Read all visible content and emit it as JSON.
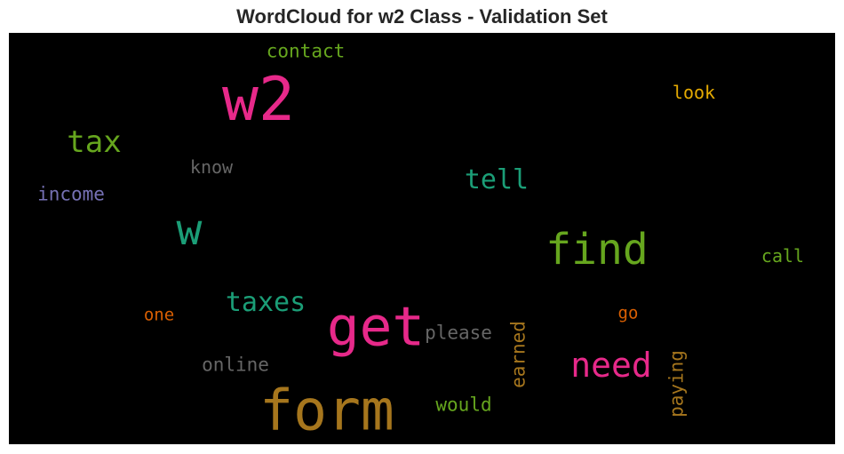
{
  "chart_data": {
    "type": "wordcloud",
    "title": "WordCloud for w2 Class - Validation Set",
    "words": [
      {
        "text": "w2",
        "weight": 1.0,
        "color": "#e7298a",
        "orientation": "horizontal"
      },
      {
        "text": "form",
        "weight": 0.93,
        "color": "#a6761d",
        "orientation": "horizontal"
      },
      {
        "text": "get",
        "weight": 0.9,
        "color": "#e7298a",
        "orientation": "horizontal"
      },
      {
        "text": "w",
        "weight": 0.7,
        "color": "#1b9e77",
        "orientation": "horizontal"
      },
      {
        "text": "find",
        "weight": 0.7,
        "color": "#66a61e",
        "orientation": "horizontal"
      },
      {
        "text": "need",
        "weight": 0.55,
        "color": "#e7298a",
        "orientation": "horizontal"
      },
      {
        "text": "tax",
        "weight": 0.5,
        "color": "#66a61e",
        "orientation": "horizontal"
      },
      {
        "text": "taxes",
        "weight": 0.44,
        "color": "#1b9e77",
        "orientation": "horizontal"
      },
      {
        "text": "tell",
        "weight": 0.44,
        "color": "#1b9e77",
        "orientation": "horizontal"
      },
      {
        "text": "earned",
        "weight": 0.3,
        "color": "#a6761d",
        "orientation": "vertical"
      },
      {
        "text": "paying",
        "weight": 0.3,
        "color": "#a6761d",
        "orientation": "vertical"
      },
      {
        "text": "please",
        "weight": 0.3,
        "color": "#666666",
        "orientation": "horizontal"
      },
      {
        "text": "online",
        "weight": 0.3,
        "color": "#666666",
        "orientation": "horizontal"
      },
      {
        "text": "contact",
        "weight": 0.3,
        "color": "#66a61e",
        "orientation": "horizontal"
      },
      {
        "text": "income",
        "weight": 0.3,
        "color": "#7570b3",
        "orientation": "horizontal"
      },
      {
        "text": "would",
        "weight": 0.3,
        "color": "#66a61e",
        "orientation": "horizontal"
      },
      {
        "text": "look",
        "weight": 0.28,
        "color": "#e6ab02",
        "orientation": "horizontal"
      },
      {
        "text": "call",
        "weight": 0.28,
        "color": "#66a61e",
        "orientation": "horizontal"
      },
      {
        "text": "know",
        "weight": 0.28,
        "color": "#666666",
        "orientation": "horizontal"
      },
      {
        "text": "one",
        "weight": 0.27,
        "color": "#d95f02",
        "orientation": "horizontal"
      },
      {
        "text": "go",
        "weight": 0.27,
        "color": "#d95f02",
        "orientation": "horizontal"
      }
    ]
  }
}
